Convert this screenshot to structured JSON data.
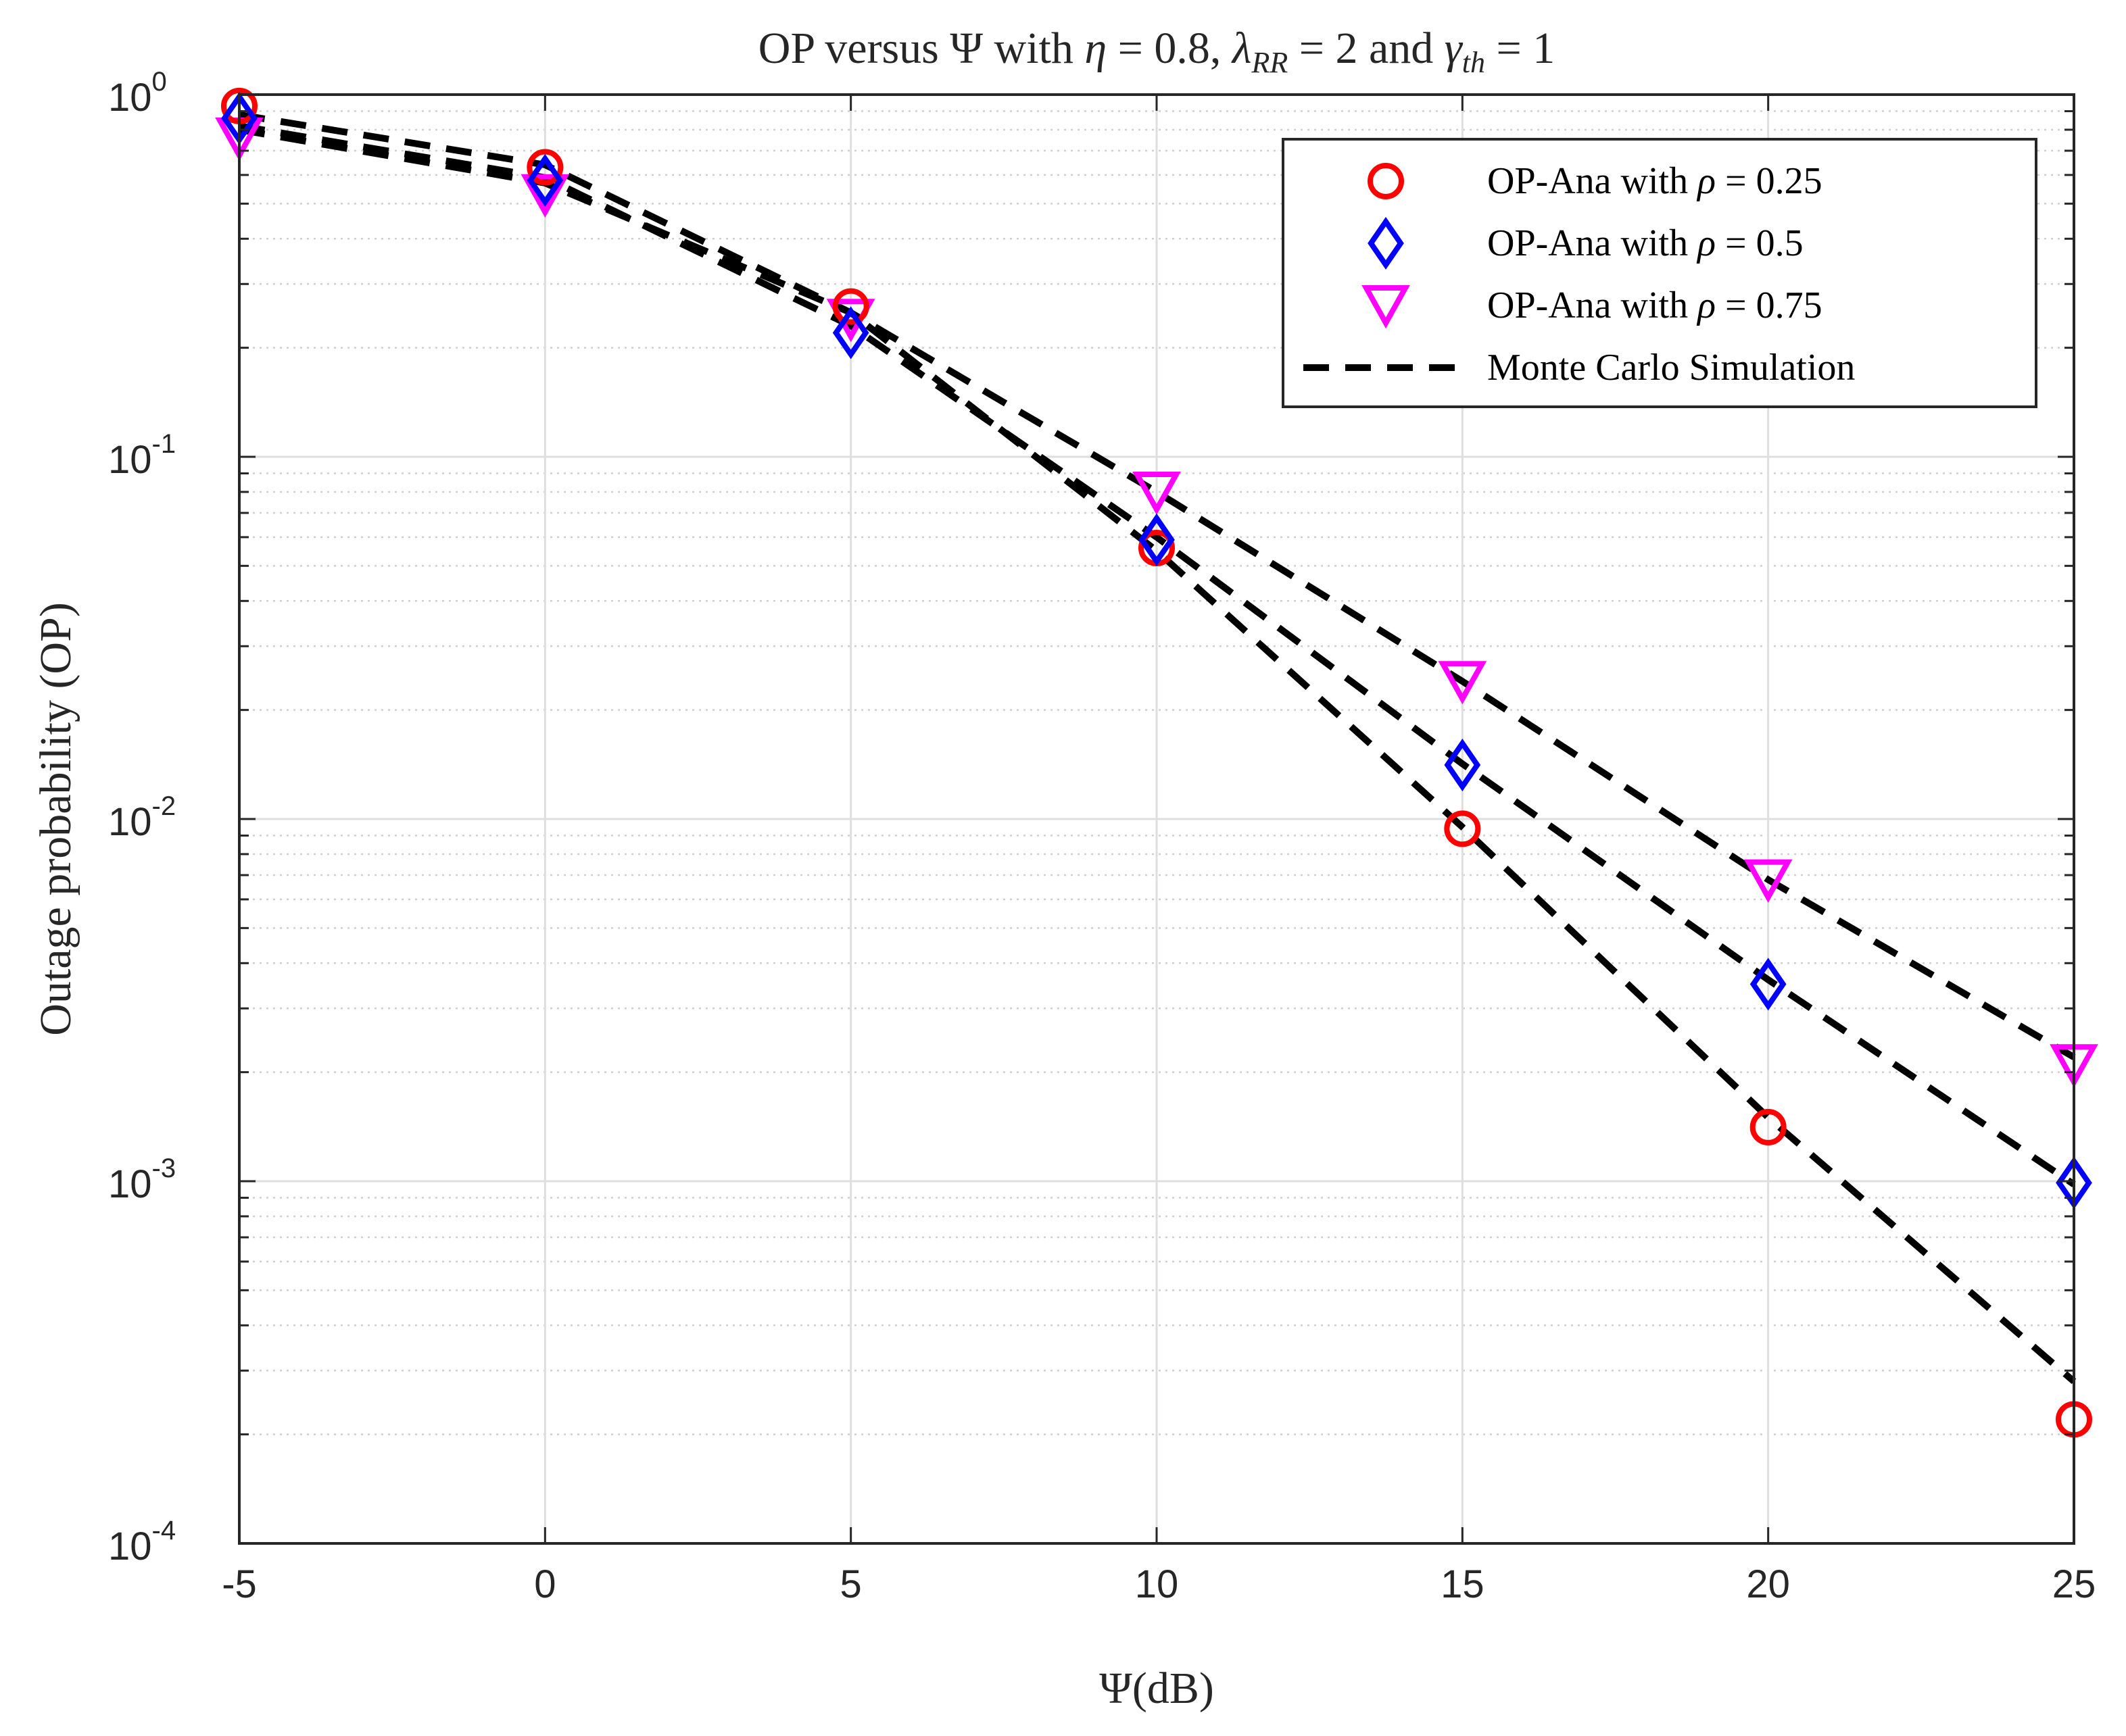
{
  "chart_data": {
    "type": "scatter",
    "title": {
      "prefix": "OP versus Ψ with ",
      "eta_symbol": "η",
      "eta_value": " = 0.8, ",
      "lambda_symbol": "λ",
      "lambda_sub": "RR",
      "lambda_value": " = 2 and ",
      "gamma_symbol": "γ",
      "gamma_sub": "th",
      "gamma_value": " = 1"
    },
    "xlabel": "Ψ(dB)",
    "ylabel": "Outage probability (OP)",
    "xlim": [
      -5,
      25
    ],
    "ylim": [
      0.0001,
      1
    ],
    "yscale": "log",
    "grid": true,
    "legend_position": "top-right",
    "x_ticks": [
      -5,
      0,
      5,
      10,
      15,
      20,
      25
    ],
    "x_tick_labels": [
      "-5",
      "0",
      "5",
      "10",
      "15",
      "20",
      "25"
    ],
    "y_ticks": [
      {
        "value": 1,
        "base": "10",
        "exp": "0"
      },
      {
        "value": 0.1,
        "base": "10",
        "exp": "-1"
      },
      {
        "value": 0.01,
        "base": "10",
        "exp": "-2"
      },
      {
        "value": 0.001,
        "base": "10",
        "exp": "-3"
      },
      {
        "value": 0.0001,
        "base": "10",
        "exp": "-4"
      }
    ],
    "x": [
      -5,
      0,
      5,
      10,
      15,
      20,
      25
    ],
    "series": [
      {
        "name": "OP-Ana with ρ = 0.25",
        "legend_prefix": "OP-Ana with ",
        "legend_symbol": "ρ",
        "legend_value": " = 0.25",
        "marker": "circle",
        "color": "#ff0000",
        "values": [
          0.93,
          0.63,
          0.26,
          0.056,
          0.0094,
          0.00141,
          0.00022
        ]
      },
      {
        "name": "OP-Ana with ρ = 0.5",
        "legend_prefix": "OP-Ana with ",
        "legend_symbol": "ρ",
        "legend_value": " = 0.5",
        "marker": "diamond",
        "color": "#0000ff",
        "values": [
          0.86,
          0.58,
          0.22,
          0.059,
          0.0141,
          0.0035,
          0.00099
        ]
      },
      {
        "name": "OP-Ana with ρ = 0.75",
        "legend_prefix": "OP-Ana with ",
        "legend_symbol": "ρ",
        "legend_value": " = 0.75",
        "marker": "triangle-down",
        "color": "#ff00ff",
        "values": [
          0.76,
          0.53,
          0.24,
          0.08,
          0.024,
          0.0068,
          0.0021
        ]
      },
      {
        "name": "Monte Carlo Simulation",
        "legend_text": "Monte Carlo Simulation",
        "marker": "dashed-line",
        "color": "#000000",
        "curves": [
          [
            0.88,
            0.64,
            0.25,
            0.055,
            0.0095,
            0.0015,
            0.00028
          ],
          [
            0.82,
            0.59,
            0.23,
            0.06,
            0.0142,
            0.0036,
            0.00098
          ],
          [
            0.8,
            0.57,
            0.25,
            0.08,
            0.024,
            0.0068,
            0.0022
          ]
        ]
      }
    ]
  }
}
